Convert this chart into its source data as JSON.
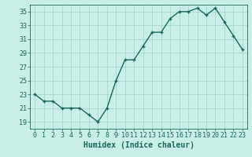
{
  "x": [
    0,
    1,
    2,
    3,
    4,
    5,
    6,
    7,
    8,
    9,
    10,
    11,
    12,
    13,
    14,
    15,
    16,
    17,
    18,
    19,
    20,
    21,
    22,
    23
  ],
  "y": [
    23,
    22,
    22,
    21,
    21,
    21,
    20,
    19,
    21,
    25,
    28,
    28,
    30,
    32,
    32,
    34,
    35,
    35,
    35.5,
    34.5,
    35.5,
    33.5,
    31.5,
    29.5
  ],
  "line_color": "#1a6b5a",
  "marker": "+",
  "marker_size": 3,
  "bg_color": "#c8eee8",
  "grid_color": "#a0d0c8",
  "xlabel": "Humidex (Indice chaleur)",
  "ylim": [
    18,
    36
  ],
  "xlim": [
    -0.5,
    23.5
  ],
  "yticks": [
    19,
    21,
    23,
    25,
    27,
    29,
    31,
    33,
    35
  ],
  "xticks": [
    0,
    1,
    2,
    3,
    4,
    5,
    6,
    7,
    8,
    9,
    10,
    11,
    12,
    13,
    14,
    15,
    16,
    17,
    18,
    19,
    20,
    21,
    22,
    23
  ],
  "xlabel_fontsize": 7,
  "tick_fontsize": 6,
  "line_width": 1.0
}
